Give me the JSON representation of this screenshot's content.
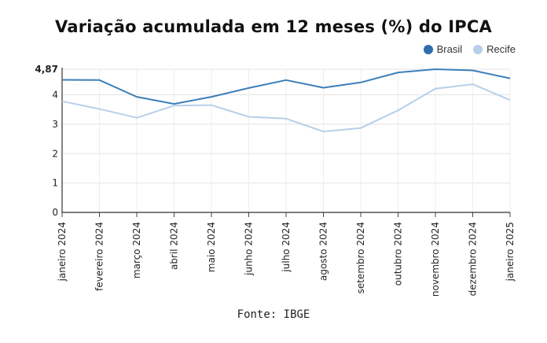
{
  "chart_data": {
    "type": "line",
    "title": "Variação acumulada em 12 meses (%) do IPCA",
    "source": "Fonte: IBGE",
    "categories": [
      "janeiro 2024",
      "fevereiro 2024",
      "março 2024",
      "abril 2024",
      "maio 2024",
      "junho 2024",
      "julho 2024",
      "agosto 2024",
      "setembro 2024",
      "outubro 2024",
      "novembro 2024",
      "dezembro 2024",
      "janeiro 2025"
    ],
    "series": [
      {
        "name": "Brasil",
        "color": "#3b7fb9",
        "values": [
          4.51,
          4.5,
          3.93,
          3.69,
          3.93,
          4.23,
          4.5,
          4.24,
          4.42,
          4.76,
          4.87,
          4.83,
          4.56
        ]
      },
      {
        "name": "Recife",
        "color": "#b7cfe9",
        "values": [
          3.78,
          3.52,
          3.22,
          3.63,
          3.65,
          3.25,
          3.19,
          2.75,
          2.87,
          3.47,
          4.21,
          4.36,
          3.82
        ]
      }
    ],
    "y_ticks": [
      {
        "value": 0,
        "label": "0"
      },
      {
        "value": 1,
        "label": "1"
      },
      {
        "value": 2,
        "label": "2"
      },
      {
        "value": 3,
        "label": "3"
      },
      {
        "value": 4,
        "label": "4"
      },
      {
        "value": 4.87,
        "label": "4,87"
      }
    ],
    "ylim": [
      0,
      4.87
    ],
    "grid": true,
    "legend_position": "top-right"
  }
}
